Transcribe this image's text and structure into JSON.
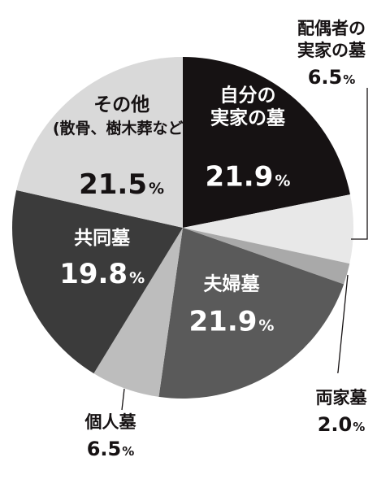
{
  "chart_data": {
    "type": "pie",
    "title": "",
    "unit": "%",
    "slices": [
      {
        "name": "自分の\n実家の墓",
        "value": 21.9,
        "color": "#161213",
        "text_color": "#ffffff",
        "label_pos": "inside"
      },
      {
        "name": "配偶者の\n実家の墓",
        "value": 6.5,
        "color": "#e8e8e8",
        "text_color": "#161213",
        "label_pos": "outside"
      },
      {
        "name": "両家墓",
        "value": 2.0,
        "color": "#a9a9a9",
        "text_color": "#161213",
        "label_pos": "outside"
      },
      {
        "name": "夫婦墓",
        "value": 21.9,
        "color": "#5a5a5a",
        "text_color": "#ffffff",
        "label_pos": "inside"
      },
      {
        "name": "個人墓",
        "value": 6.5,
        "color": "#bdbdbd",
        "text_color": "#161213",
        "label_pos": "outside"
      },
      {
        "name": "共同墓",
        "value": 19.8,
        "color": "#3b3b3b",
        "text_color": "#ffffff",
        "label_pos": "inside"
      },
      {
        "name": "その他\n(散骨、樹木葬など)",
        "value": 21.5,
        "color": "#d9d9d9",
        "text_color": "#161213",
        "label_pos": "inside"
      }
    ]
  }
}
